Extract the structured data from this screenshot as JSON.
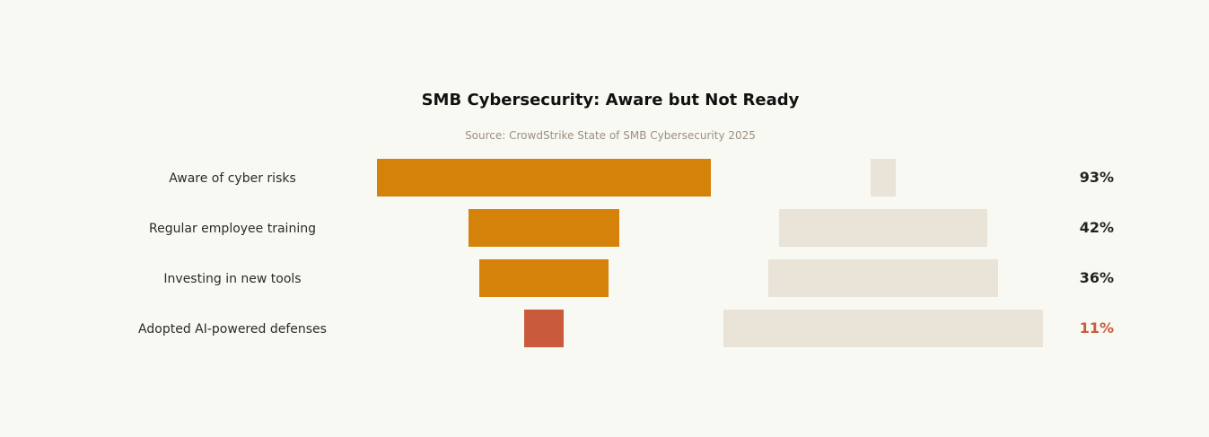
{
  "chart_data": {
    "type": "bar",
    "title": "SMB Cybersecurity: Aware but Not Ready",
    "subtitle": "Source: CrowdStrike State of SMB Cybersecurity 2025",
    "xlabel": "",
    "ylabel": "",
    "unit": "%",
    "categories": [
      "Aware of cyber risks",
      "Regular employee training",
      "Investing in new tools",
      "Adopted AI-powered defenses"
    ],
    "series": [
      {
        "values": [
          93,
          42,
          36,
          11
        ]
      },
      {
        "values": [
          7,
          58,
          64,
          89
        ]
      }
    ],
    "value_labels": [
      "93%",
      "42%",
      "36%",
      "11%"
    ],
    "ylim": [
      0,
      100
    ],
    "grid": false,
    "legend": "none",
    "colors": {
      "bar_default": "#d4820a",
      "bar_highlight": "#c95b3c",
      "remainder": "#e9e3d8",
      "label_default": "#222222",
      "label_highlight": "#c95b3c",
      "background": "#f9f9f4"
    },
    "highlight_index": 3
  }
}
